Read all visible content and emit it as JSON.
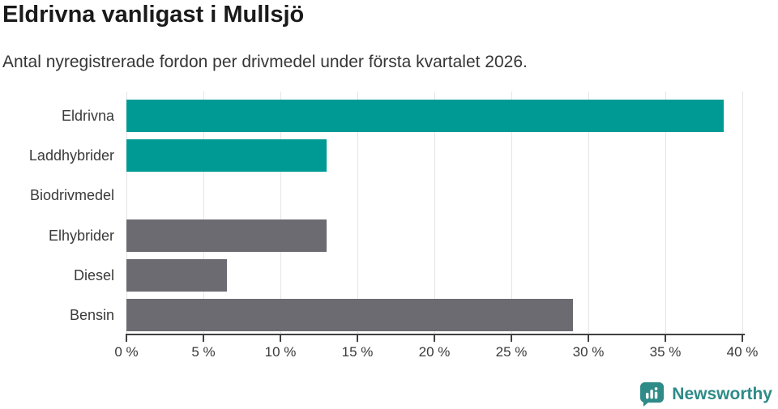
{
  "header": {
    "title": "Eldrivna vanligast i Mullsjö",
    "subtitle": "Antal nyregistrerade fordon per drivmedel under första kvartalet 2026."
  },
  "chart_data": {
    "type": "bar",
    "orientation": "horizontal",
    "title": "Eldrivna vanligast i Mullsjö",
    "subtitle": "Antal nyregistrerade fordon per drivmedel under första kvartalet 2026.",
    "categories": [
      "Eldrivna",
      "Laddhybrider",
      "Biodrivmedel",
      "Elhybrider",
      "Diesel",
      "Bensin"
    ],
    "values": [
      38.8,
      13,
      0,
      13,
      6.5,
      29
    ],
    "unit": "%",
    "xlabel": "",
    "ylabel": "",
    "xlim": [
      0,
      40
    ],
    "xticks": [
      0,
      5,
      10,
      15,
      20,
      25,
      30,
      35,
      40
    ],
    "xtick_suffix": " %",
    "grid": true,
    "legend": "none",
    "bar_colors": [
      "#009a94",
      "#009a94",
      "#009a94",
      "#6b6b71",
      "#6b6b71",
      "#6b6b71"
    ]
  },
  "colors": {
    "teal": "#009a94",
    "gray": "#6b6b71",
    "logo_teal": "#2e8b88",
    "title_text": "#1a1a1a",
    "body_text": "#3a3a3a",
    "gridline": "#e4e4e4",
    "axis": "#414141"
  },
  "footer": {
    "brand": "Newsworthy",
    "logo_icon": "bar-chart-speech-bubble-icon"
  }
}
